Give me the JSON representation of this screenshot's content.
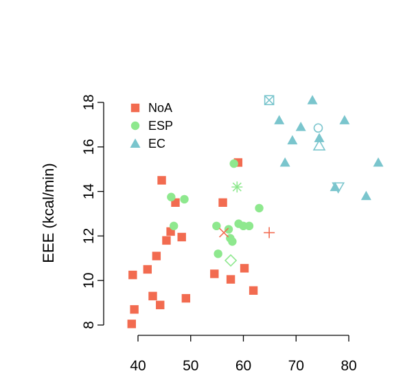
{
  "chart_data": {
    "type": "scatter",
    "title": "",
    "xlabel": "",
    "ylabel": "EEE (kcal/min)",
    "xlim": [
      38,
      87
    ],
    "ylim": [
      7.8,
      18.4
    ],
    "x_ticks": [
      40,
      50,
      60,
      70,
      80
    ],
    "y_ticks": [
      8,
      10,
      12,
      14,
      16,
      18
    ],
    "grid": false,
    "legend_position": "top-left",
    "colors": {
      "NoA": "#F26B50",
      "ESP": "#8EE88E",
      "EC": "#7AC5CD"
    },
    "series": [
      {
        "name": "NoA",
        "marker": "square",
        "points": [
          [
            38.8,
            8.05
          ],
          [
            39.3,
            8.7
          ],
          [
            39.0,
            10.25
          ],
          [
            41.8,
            10.5
          ],
          [
            42.8,
            9.3
          ],
          [
            43.5,
            11.1
          ],
          [
            44.2,
            8.9
          ],
          [
            44.5,
            14.5
          ],
          [
            45.4,
            11.8
          ],
          [
            46.2,
            12.2
          ],
          [
            47.1,
            13.5
          ],
          [
            48.3,
            11.95
          ],
          [
            49.1,
            9.2
          ],
          [
            54.5,
            10.3
          ],
          [
            56.1,
            13.5
          ],
          [
            57.6,
            10.05
          ],
          [
            59.0,
            15.3
          ],
          [
            60.2,
            10.55
          ],
          [
            61.9,
            9.55
          ]
        ]
      },
      {
        "name": "ESP",
        "marker": "circle",
        "points": [
          [
            46.3,
            13.75
          ],
          [
            46.8,
            12.45
          ],
          [
            48.8,
            13.65
          ],
          [
            54.9,
            12.45
          ],
          [
            55.2,
            11.2
          ],
          [
            57.2,
            12.3
          ],
          [
            57.5,
            11.9
          ],
          [
            57.9,
            11.75
          ],
          [
            58.2,
            15.25
          ],
          [
            59.1,
            12.55
          ],
          [
            60.0,
            12.45
          ],
          [
            61.1,
            12.45
          ],
          [
            63.0,
            13.25
          ]
        ]
      },
      {
        "name": "EC",
        "marker": "triangle",
        "points": [
          [
            66.8,
            17.2
          ],
          [
            67.9,
            15.3
          ],
          [
            69.3,
            16.3
          ],
          [
            70.9,
            16.9
          ],
          [
            73.1,
            18.1
          ],
          [
            74.4,
            16.4
          ],
          [
            77.4,
            14.2
          ],
          [
            79.2,
            17.2
          ],
          [
            83.3,
            13.8
          ],
          [
            85.6,
            15.3
          ]
        ]
      }
    ],
    "special_points": [
      {
        "marker": "x",
        "color": "#F26B50",
        "x": 56.3,
        "y": 12.15
      },
      {
        "marker": "plus",
        "color": "#F26B50",
        "x": 64.9,
        "y": 12.15
      },
      {
        "marker": "asterisk",
        "color": "#8EE88E",
        "x": 58.8,
        "y": 14.2
      },
      {
        "marker": "diamond-open",
        "color": "#8EE88E",
        "x": 57.6,
        "y": 10.9
      },
      {
        "marker": "square-x-open",
        "color": "#7AC5CD",
        "x": 64.9,
        "y": 18.1
      },
      {
        "marker": "circle-open",
        "color": "#7AC5CD",
        "x": 74.2,
        "y": 16.85
      },
      {
        "marker": "triangle-open",
        "color": "#7AC5CD",
        "x": 74.4,
        "y": 16.05
      },
      {
        "marker": "triangle-down-open",
        "color": "#7AC5CD",
        "x": 78.0,
        "y": 14.2
      }
    ]
  }
}
